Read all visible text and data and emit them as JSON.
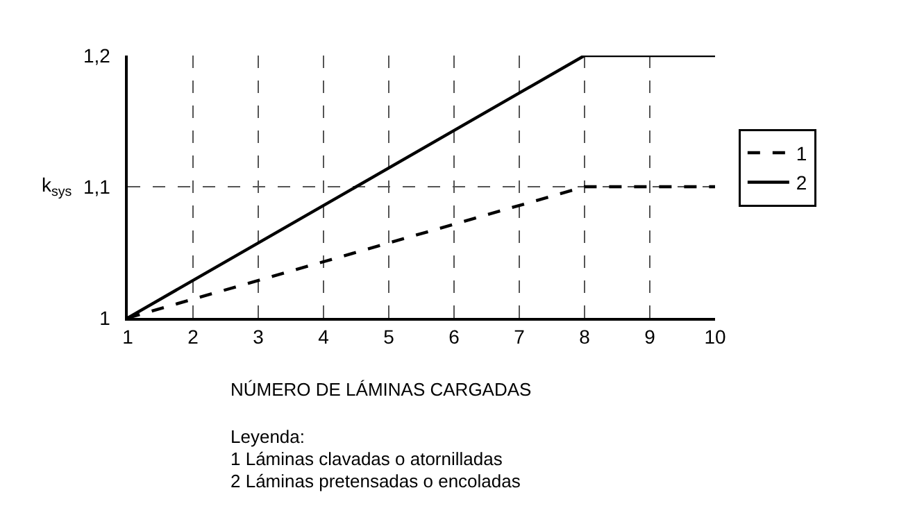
{
  "chart_data": {
    "type": "line",
    "ylabel": "k$_{sys}$",
    "xlabel": "NÚMERO DE LÁMINAS CARGADAS",
    "x": [
      1,
      8,
      10
    ],
    "series": [
      {
        "name": "1",
        "color": "#000000",
        "values": [
          1,
          1.1,
          1.1
        ],
        "line_style": "dashed"
      },
      {
        "name": "2",
        "color": "#000000",
        "values": [
          1,
          1.2,
          1.2
        ],
        "line_style": "solid"
      }
    ],
    "xlim": [
      1,
      10
    ],
    "xticks": [
      1,
      2,
      3,
      4,
      5,
      6,
      7,
      8,
      9,
      10
    ],
    "ylim": [
      1,
      1.2
    ],
    "yticks": [
      {
        "value": 1,
        "label": "1"
      },
      {
        "value": 1.1,
        "label": "1,1"
      },
      {
        "value": 1.2,
        "label": "1,2"
      }
    ],
    "grid": true,
    "legend": "right",
    "marker": "none",
    "annotations": [
      "Leyenda:",
      "1 Láminas clavadas o atornilladas",
      "2 Láminas pretensadas o encoladas"
    ]
  }
}
